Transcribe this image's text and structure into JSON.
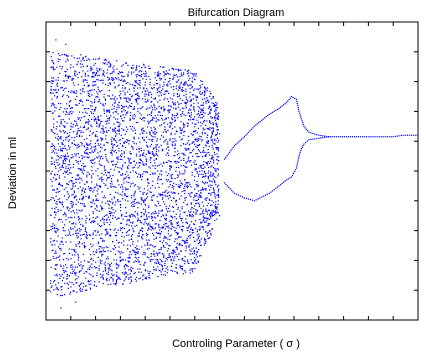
{
  "chart_data": {
    "type": "scatter",
    "title": "Bifurcation Diagram",
    "xlabel": "Controling Parameter ( σ )",
    "ylabel": "Deviation in ml",
    "xlim": [
      0.05,
      0.8
    ],
    "ylim": [
      -0.8,
      1.2
    ],
    "xticks": [
      0.1,
      0.15,
      0.2,
      0.25,
      0.3,
      0.35,
      0.4,
      0.45,
      0.5,
      0.55,
      0.6,
      0.65,
      0.7,
      0.75,
      0.8
    ],
    "xtick_labels": [
      "",
      "",
      "",
      "",
      "",
      "",
      "",
      "",
      "",
      "",
      "",
      "",
      "",
      "",
      ""
    ],
    "yticks": [
      -0.8,
      -0.6,
      -0.4,
      -0.2,
      0,
      0.2,
      0.4,
      0.6,
      0.8,
      1,
      1.2
    ],
    "ytick_labels": [
      "",
      "",
      "",
      "",
      "",
      "",
      "",
      "",
      "",
      "",
      ""
    ],
    "grid": false,
    "marker_color": "#0000ff",
    "series": [
      {
        "name": "",
        "regime": "chaotic",
        "sigma_range": [
          0.06,
          0.4
        ],
        "y_range": [
          -0.75,
          1.1
        ],
        "points": [
          [
            0.07,
            1.08
          ],
          [
            0.09,
            1.05
          ],
          [
            0.08,
            -0.72
          ],
          [
            0.11,
            -0.68
          ],
          [
            0.13,
            -0.6
          ],
          [
            0.12,
            0.98
          ],
          [
            0.15,
            0.95
          ],
          [
            0.18,
            0.9
          ],
          [
            0.2,
            0.86
          ],
          [
            0.25,
            0.85
          ],
          [
            0.3,
            0.82
          ],
          [
            0.1,
            0.6
          ],
          [
            0.15,
            -0.45
          ],
          [
            0.2,
            -0.4
          ],
          [
            0.25,
            -0.35
          ],
          [
            0.3,
            -0.3
          ],
          [
            0.35,
            0.75
          ],
          [
            0.38,
            -0.2
          ],
          [
            0.4,
            0.45
          ],
          [
            0.4,
            -0.1
          ]
        ]
      },
      {
        "name": "",
        "regime": "period-2 upper branch",
        "points": [
          [
            0.41,
            0.28
          ],
          [
            0.43,
            0.37
          ],
          [
            0.45,
            0.43
          ],
          [
            0.47,
            0.5
          ],
          [
            0.5,
            0.58
          ],
          [
            0.52,
            0.62
          ],
          [
            0.535,
            0.66
          ],
          [
            0.545,
            0.7
          ],
          [
            0.555,
            0.68
          ],
          [
            0.56,
            0.6
          ],
          [
            0.565,
            0.55
          ],
          [
            0.57,
            0.5
          ],
          [
            0.58,
            0.46
          ],
          [
            0.6,
            0.44
          ],
          [
            0.62,
            0.43
          ]
        ]
      },
      {
        "name": "",
        "regime": "period-2 lower branch",
        "points": [
          [
            0.41,
            0.12
          ],
          [
            0.43,
            0.05
          ],
          [
            0.45,
            0.02
          ],
          [
            0.47,
            0.0
          ],
          [
            0.5,
            0.05
          ],
          [
            0.52,
            0.1
          ],
          [
            0.535,
            0.14
          ],
          [
            0.545,
            0.16
          ],
          [
            0.555,
            0.22
          ],
          [
            0.56,
            0.3
          ],
          [
            0.565,
            0.35
          ],
          [
            0.57,
            0.38
          ],
          [
            0.58,
            0.41
          ],
          [
            0.6,
            0.42
          ],
          [
            0.62,
            0.43
          ]
        ]
      },
      {
        "name": "",
        "regime": "fixed point",
        "points": [
          [
            0.62,
            0.43
          ],
          [
            0.64,
            0.43
          ],
          [
            0.66,
            0.43
          ],
          [
            0.68,
            0.43
          ],
          [
            0.73,
            0.43
          ],
          [
            0.75,
            0.43
          ],
          [
            0.77,
            0.44
          ],
          [
            0.8,
            0.44
          ]
        ]
      }
    ]
  }
}
